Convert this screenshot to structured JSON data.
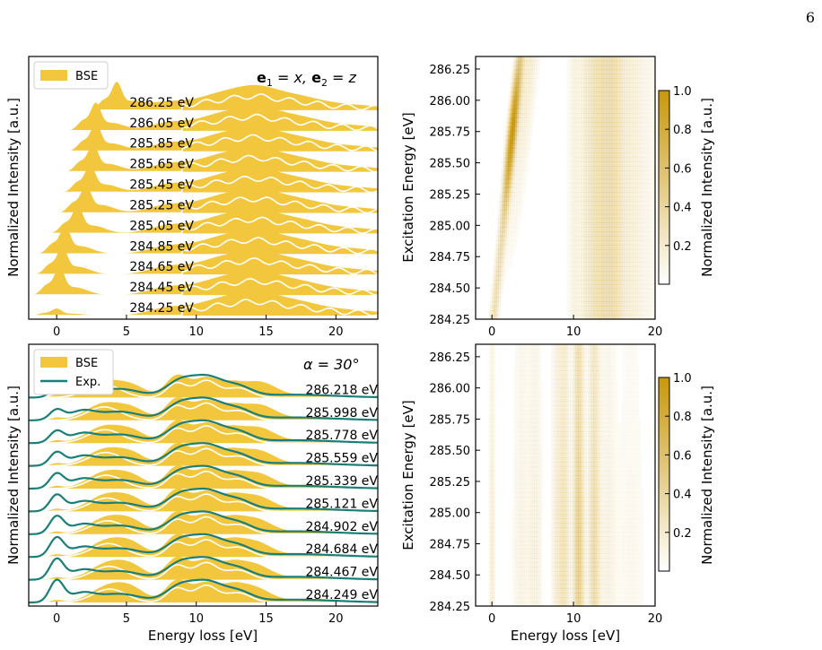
{
  "page_number": "6",
  "colors": {
    "bse": "#f2c73e",
    "bse_ridge": "#ffffff",
    "exp": "#1a7f78",
    "map_high": "#c9970a",
    "map_low": "#ffffff"
  },
  "chart_data": [
    {
      "id": "top_left",
      "type": "area",
      "panel_label_prefix": "e",
      "panel_label_sub1": "1",
      "panel_label_mid": " = x, ",
      "panel_label_sub2": "2",
      "panel_label_suffix": " = z",
      "xlabel": "",
      "ylabel": "Normalized Intensity [a.u.]",
      "xlim": [
        -2,
        23
      ],
      "xticks": [
        "0",
        "5",
        "10",
        "15",
        "20"
      ],
      "xtick_values": [
        0,
        5,
        10,
        15,
        20
      ],
      "legend": [
        {
          "name": "BSE",
          "kind": "patch"
        }
      ],
      "legend_position": "top-left",
      "series": [
        {
          "name": "286.25 eV",
          "peak": 4.3
        },
        {
          "name": "286.05 eV",
          "peak": 2.8
        },
        {
          "name": "285.85 eV",
          "peak": 2.8
        },
        {
          "name": "285.65 eV",
          "peak": 2.6
        },
        {
          "name": "285.45 eV",
          "peak": 2.4
        },
        {
          "name": "285.25 eV",
          "peak": 2.1
        },
        {
          "name": "285.05 eV",
          "peak": 1.5
        },
        {
          "name": "284.85 eV",
          "peak": 0.6
        },
        {
          "name": "284.65 eV",
          "peak": 0.4
        },
        {
          "name": "284.45 eV",
          "peak": 0.2
        },
        {
          "name": "284.25 eV",
          "peak": 0.0
        }
      ]
    },
    {
      "id": "top_right",
      "type": "heatmap",
      "xlabel": "",
      "ylabel": "Excitation Energy [eV]",
      "xlim": [
        -2,
        20
      ],
      "ylim": [
        284.25,
        286.35
      ],
      "xticks": [
        "0",
        "10",
        "20"
      ],
      "xtick_values": [
        0,
        10,
        20
      ],
      "yticks": [
        "284.25",
        "284.50",
        "284.75",
        "285.00",
        "285.25",
        "285.50",
        "285.75",
        "286.00",
        "286.25"
      ],
      "ytick_values": [
        284.25,
        284.5,
        284.75,
        285.0,
        285.25,
        285.5,
        285.75,
        286.0,
        286.25
      ],
      "colorbar_label": "Normalized Intensity [a.u.]",
      "colorbar_ticks": [
        "0.2",
        "0.4",
        "0.6",
        "0.8",
        "1.0"
      ],
      "colorbar_tick_values": [
        0.2,
        0.4,
        0.6,
        0.8,
        1.0
      ]
    },
    {
      "id": "bottom_left",
      "type": "area",
      "panel_label": "α = 30°",
      "xlabel": "Energy loss [eV]",
      "ylabel": "Normalized Intensity [a.u.]",
      "xlim": [
        -2,
        23
      ],
      "xticks": [
        "0",
        "5",
        "10",
        "15",
        "20"
      ],
      "xtick_values": [
        0,
        5,
        10,
        15,
        20
      ],
      "legend": [
        {
          "name": "BSE",
          "kind": "patch"
        },
        {
          "name": "Exp.",
          "kind": "line"
        }
      ],
      "legend_position": "top-left",
      "series": [
        {
          "name": "286.218 eV"
        },
        {
          "name": "285.998 eV"
        },
        {
          "name": "285.778 eV"
        },
        {
          "name": "285.559 eV"
        },
        {
          "name": "285.339 eV"
        },
        {
          "name": "285.121 eV"
        },
        {
          "name": "284.902 eV"
        },
        {
          "name": "284.684 eV"
        },
        {
          "name": "284.467 eV"
        },
        {
          "name": "284.249 eV"
        }
      ]
    },
    {
      "id": "bottom_right",
      "type": "heatmap",
      "xlabel": "Energy loss [eV]",
      "ylabel": "Excitation Energy [eV]",
      "xlim": [
        -2,
        20
      ],
      "ylim": [
        284.25,
        286.35
      ],
      "xticks": [
        "0",
        "10",
        "20"
      ],
      "xtick_values": [
        0,
        10,
        20
      ],
      "yticks": [
        "284.25",
        "284.50",
        "284.75",
        "285.00",
        "285.25",
        "285.50",
        "285.75",
        "286.00",
        "286.25"
      ],
      "ytick_values": [
        284.25,
        284.5,
        284.75,
        285.0,
        285.25,
        285.5,
        285.75,
        286.0,
        286.25
      ],
      "colorbar_label": "Normalized Intensity [a.u.]",
      "colorbar_ticks": [
        "0.2",
        "0.4",
        "0.6",
        "0.8",
        "1.0"
      ],
      "colorbar_tick_values": [
        0.2,
        0.4,
        0.6,
        0.8,
        1.0
      ]
    }
  ]
}
